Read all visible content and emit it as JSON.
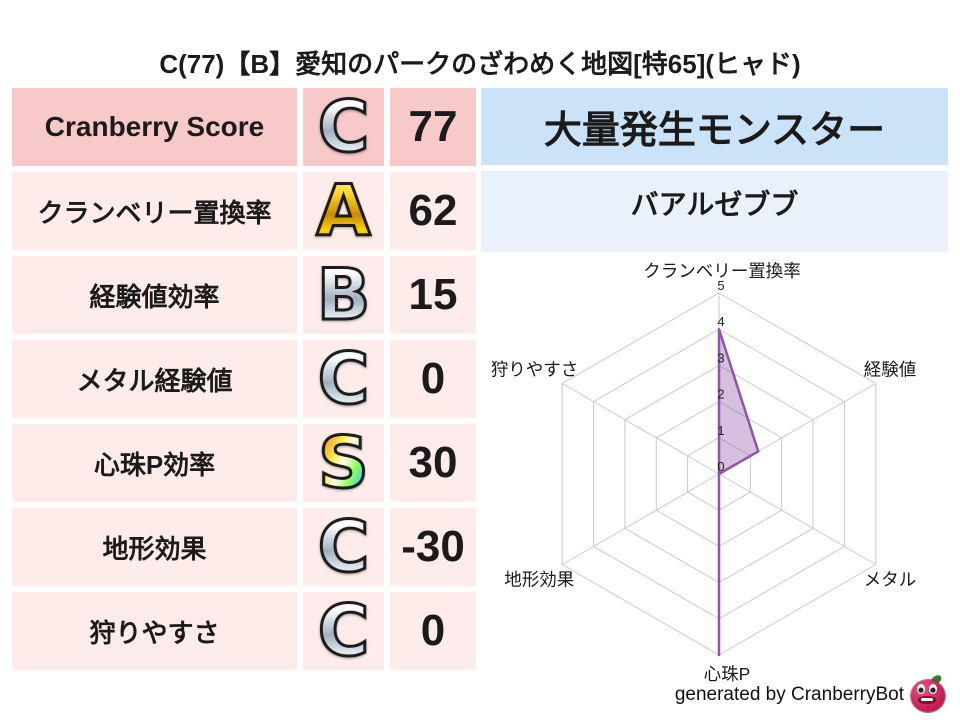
{
  "title": "C(77)【B】愛知のパークのざわめく地図[特65](ヒャド)",
  "score_table": {
    "rows": [
      {
        "label": "Cranberry Score",
        "grade": "C",
        "value": "77"
      },
      {
        "label": "クランベリー置換率",
        "grade": "A",
        "value": "62"
      },
      {
        "label": "経験値効率",
        "grade": "B",
        "value": "15"
      },
      {
        "label": "メタル経験値",
        "grade": "C",
        "value": "0"
      },
      {
        "label": "心珠P効率",
        "grade": "S",
        "value": "30"
      },
      {
        "label": "地形効果",
        "grade": "C",
        "value": "-30"
      },
      {
        "label": "狩りやすさ",
        "grade": "C",
        "value": "0"
      }
    ]
  },
  "monster_panel": {
    "header": "大量発生モンスター",
    "name": "バアルゼブブ"
  },
  "chart_data": {
    "type": "radar",
    "axes": [
      "クランベリー置換率",
      "経験値",
      "メタル",
      "心珠P",
      "地形効果",
      "狩りやすさ"
    ],
    "values": [
      4,
      1.25,
      0,
      5,
      0,
      0
    ],
    "ticks": [
      "0",
      "1",
      "2",
      "3",
      "4",
      "5"
    ],
    "rmax": 5,
    "grid": true,
    "fill_color": "rgba(154,94,176,0.40)",
    "stroke_color": "#9055a8",
    "grid_color": "#c9c9c9"
  },
  "footer": {
    "credit": "generated by CranberryBot",
    "icon": "cranberry-bot-icon"
  },
  "colors": {
    "row_highlight": "#f8c9c9",
    "row_base": "#fdecea",
    "panel_header": "#cbe3f9",
    "panel_body": "#e9f1fa"
  }
}
